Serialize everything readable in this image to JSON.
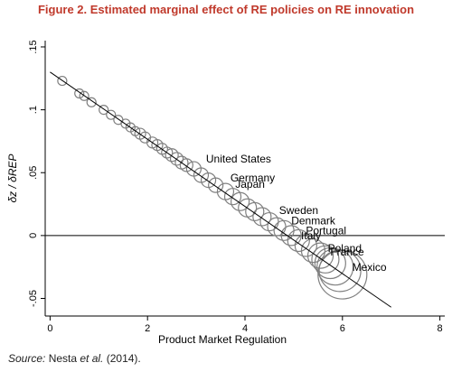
{
  "figure": {
    "title": "Figure 2. Estimated marginal effect of RE policies on RE innovation",
    "source_label": "Source:",
    "source_text_pre": " Nesta ",
    "source_text_em": "et al.",
    "source_text_post": " (2014)."
  },
  "chart_data": {
    "type": "scatter",
    "xlabel": "Product Market Regulation",
    "ylabel": "δz / δREP",
    "xlim": [
      -0.1,
      8.1
    ],
    "ylim": [
      -0.064,
      0.155
    ],
    "x_ticks": [
      0,
      2,
      4,
      6,
      8
    ],
    "y_ticks": [
      -0.05,
      0,
      0.05,
      0.1,
      0.15
    ],
    "x_tick_labels": [
      "0",
      "2",
      "4",
      "6",
      "8"
    ],
    "y_tick_labels": [
      "-.05",
      "0",
      ".05",
      ".1",
      ".15"
    ],
    "reference_line_y": 0,
    "fit_line": {
      "x": [
        0.0,
        7.0
      ],
      "y": [
        0.13,
        -0.057
      ]
    },
    "grid": false,
    "legend": "none",
    "marker": "hollow circle (size proportional to weight)",
    "colors": {
      "axis": "#000000",
      "marker": "#808080",
      "line": "#000000",
      "title": "#c0392b"
    },
    "points": [
      {
        "x": 0.25,
        "y": 0.123,
        "r": 5
      },
      {
        "x": 0.6,
        "y": 0.113,
        "r": 5
      },
      {
        "x": 0.7,
        "y": 0.111,
        "r": 5
      },
      {
        "x": 0.85,
        "y": 0.106,
        "r": 5
      },
      {
        "x": 1.1,
        "y": 0.1,
        "r": 5
      },
      {
        "x": 1.25,
        "y": 0.096,
        "r": 5
      },
      {
        "x": 1.4,
        "y": 0.092,
        "r": 5
      },
      {
        "x": 1.55,
        "y": 0.089,
        "r": 5
      },
      {
        "x": 1.65,
        "y": 0.086,
        "r": 5
      },
      {
        "x": 1.75,
        "y": 0.083,
        "r": 5
      },
      {
        "x": 1.85,
        "y": 0.081,
        "r": 6
      },
      {
        "x": 1.95,
        "y": 0.078,
        "r": 6
      },
      {
        "x": 2.1,
        "y": 0.074,
        "r": 6
      },
      {
        "x": 2.2,
        "y": 0.072,
        "r": 6
      },
      {
        "x": 2.3,
        "y": 0.069,
        "r": 6
      },
      {
        "x": 2.4,
        "y": 0.066,
        "r": 6
      },
      {
        "x": 2.5,
        "y": 0.064,
        "r": 7
      },
      {
        "x": 2.6,
        "y": 0.061,
        "r": 7
      },
      {
        "x": 2.7,
        "y": 0.058,
        "r": 7
      },
      {
        "x": 2.8,
        "y": 0.056,
        "r": 7
      },
      {
        "x": 2.95,
        "y": 0.053,
        "r": 8
      },
      {
        "x": 3.1,
        "y": 0.048,
        "r": 8
      },
      {
        "x": 3.25,
        "y": 0.044,
        "r": 8
      },
      {
        "x": 3.4,
        "y": 0.04,
        "r": 8
      },
      {
        "x": 3.6,
        "y": 0.035,
        "r": 9
      },
      {
        "x": 3.75,
        "y": 0.031,
        "r": 9
      },
      {
        "x": 3.9,
        "y": 0.027,
        "r": 10
      },
      {
        "x": 4.05,
        "y": 0.022,
        "r": 10
      },
      {
        "x": 4.2,
        "y": 0.019,
        "r": 10
      },
      {
        "x": 4.35,
        "y": 0.015,
        "r": 10
      },
      {
        "x": 4.5,
        "y": 0.011,
        "r": 10
      },
      {
        "x": 4.65,
        "y": 0.007,
        "r": 10
      },
      {
        "x": 4.8,
        "y": 0.004,
        "r": 11
      },
      {
        "x": 4.95,
        "y": 0.0,
        "r": 11
      },
      {
        "x": 5.1,
        "y": -0.004,
        "r": 12
      },
      {
        "x": 5.25,
        "y": -0.008,
        "r": 12
      },
      {
        "x": 5.4,
        "y": -0.012,
        "r": 13
      },
      {
        "x": 5.55,
        "y": -0.016,
        "r": 14
      },
      {
        "x": 5.65,
        "y": -0.019,
        "r": 15
      },
      {
        "x": 5.75,
        "y": -0.022,
        "r": 17
      },
      {
        "x": 5.85,
        "y": -0.025,
        "r": 20
      },
      {
        "x": 5.95,
        "y": -0.028,
        "r": 23
      },
      {
        "x": 6.0,
        "y": -0.031,
        "r": 27
      }
    ],
    "annotations": [
      {
        "text": "United States",
        "x": 3.2,
        "y": 0.058
      },
      {
        "text": "Germany",
        "x": 3.7,
        "y": 0.043
      },
      {
        "text": "Japan",
        "x": 3.8,
        "y": 0.038
      },
      {
        "text": "Sweden",
        "x": 4.7,
        "y": 0.017
      },
      {
        "text": "Denmark",
        "x": 4.95,
        "y": 0.009
      },
      {
        "text": "Portugal",
        "x": 5.25,
        "y": 0.001
      },
      {
        "text": "Italy",
        "x": 5.15,
        "y": -0.003
      },
      {
        "text": "Poland",
        "x": 5.7,
        "y": -0.013
      },
      {
        "text": "France",
        "x": 5.75,
        "y": -0.016
      },
      {
        "text": "Mexico",
        "x": 6.2,
        "y": -0.028
      }
    ]
  }
}
